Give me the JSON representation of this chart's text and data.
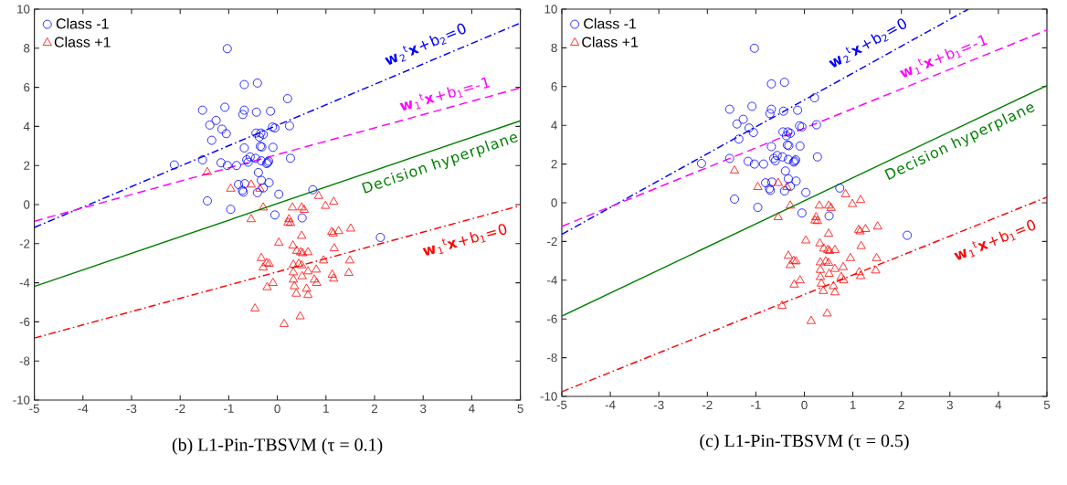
{
  "chart_data": [
    {
      "type": "scatter",
      "title": "(b)  L1-Pin-TBSVM (τ = 0.1)",
      "xlim": [
        -5,
        5
      ],
      "ylim": [
        -10,
        10
      ],
      "xticks": [
        -5,
        -4,
        -3,
        -2,
        -1,
        0,
        1,
        2,
        3,
        4,
        5
      ],
      "yticks": [
        -10,
        -8,
        -6,
        -4,
        -2,
        0,
        2,
        4,
        6,
        8,
        10
      ],
      "legend": "top left",
      "series": [
        {
          "name": "Class -1",
          "marker": "circle",
          "color": "#0000ff",
          "x": [
            -1.03,
            -0.68,
            -0.41,
            0.21,
            -1.54,
            -1.08,
            -0.68,
            -0.43,
            -0.14,
            -0.71,
            -1.26,
            -1.39,
            -1.14,
            -1.05,
            -1.35,
            -0.44,
            -0.34,
            -0.37,
            -0.29,
            -0.1,
            -0.05,
            0.25,
            -0.68,
            -0.35,
            -0.32,
            -0.09,
            0.27,
            -1.54,
            -2.12,
            -1.16,
            -1.03,
            -0.84,
            -0.63,
            -0.56,
            -0.6,
            -0.45,
            -0.33,
            -0.22,
            -0.18,
            -0.2,
            -0.39,
            -0.33,
            -0.17,
            -0.8,
            -0.67,
            -0.7,
            -0.72,
            -0.41,
            -0.29,
            0.03,
            0.73,
            -1.44,
            -0.96,
            -0.05,
            0.51,
            2.12
          ],
          "values": [
            7.98,
            6.14,
            6.22,
            5.42,
            4.83,
            4.98,
            4.83,
            4.73,
            4.78,
            4.61,
            4.31,
            4.07,
            3.86,
            3.63,
            3.29,
            3.66,
            3.66,
            3.46,
            3.59,
            3.97,
            3.92,
            4.03,
            2.9,
            2.98,
            2.95,
            2.93,
            2.37,
            2.29,
            2.03,
            2.14,
            2.0,
            2.0,
            2.29,
            2.44,
            2.17,
            2.37,
            2.24,
            2.1,
            2.22,
            2.15,
            1.64,
            1.24,
            1.12,
            1.03,
            1.07,
            0.64,
            0.73,
            0.61,
            0.85,
            0.53,
            0.76,
            0.19,
            -0.24,
            -0.53,
            -0.68,
            -1.68
          ]
        },
        {
          "name": "Class +1",
          "type": "scatter",
          "marker": "triangle",
          "color": "#ff0000",
          "x": [
            -1.44,
            -0.96,
            -0.54,
            -0.36,
            0.85,
            1.16,
            0.99,
            -0.29,
            0.31,
            0.5,
            0.55,
            -0.54,
            0.24,
            0.22,
            0.27,
            1.12,
            1.15,
            1.26,
            1.51,
            0.5,
            0.03,
            0.32,
            0.4,
            0.48,
            0.52,
            0.63,
            1.17,
            -0.33,
            -0.29,
            -0.17,
            -0.22,
            0.95,
            1.49,
            0.33,
            0.44,
            0.5,
            0.63,
            0.33,
            0.51,
            0.8,
            0.76,
            1.13,
            1.16,
            1.47,
            0.33,
            0.81,
            -0.09,
            -0.21,
            0.35,
            0.6,
            0.39,
            0.63,
            -0.46,
            0.47,
            0.14
          ],
          "values": [
            1.66,
            0.81,
            1.02,
            0.81,
            0.44,
            0.14,
            -0.07,
            -0.15,
            -0.15,
            -0.15,
            -0.27,
            -0.75,
            -0.75,
            -0.92,
            -0.95,
            -1.4,
            -1.48,
            -1.36,
            -1.23,
            -1.6,
            -1.95,
            -2.1,
            -2.37,
            -2.44,
            -2.49,
            -2.44,
            -2.24,
            -2.74,
            -3.22,
            -3.03,
            -3.0,
            -2.86,
            -2.86,
            -3.08,
            -3.03,
            -3.11,
            -3.42,
            -3.47,
            -3.67,
            -3.33,
            -3.84,
            -3.59,
            -3.79,
            -3.5,
            -3.84,
            -4.01,
            -4.01,
            -4.23,
            -4.18,
            -4.31,
            -4.56,
            -4.63,
            -5.32,
            -5.72,
            -6.11
          ]
        },
        {
          "type": "line",
          "color": "#0000ff",
          "line_style": "dashdot",
          "x": [
            -5,
            5
          ],
          "values": [
            -1.17,
            9.29
          ]
        },
        {
          "type": "line",
          "color": "#ff00ff",
          "line_style": "dashed",
          "x": [
            -5,
            5
          ],
          "values": [
            -0.85,
            5.97
          ]
        },
        {
          "type": "line",
          "color": "#008000",
          "line_style": "solid",
          "x": [
            -5,
            5
          ],
          "values": [
            -4.19,
            4.29
          ]
        },
        {
          "type": "line",
          "color": "#ff0000",
          "line_style": "dashdot",
          "x": [
            -5,
            5
          ],
          "values": [
            -6.83,
            -0.05
          ]
        }
      ],
      "annotations": [
        "**w**$_{2}$$^{t}$**x**+b$_{2}$=0",
        "**w**$_{1}$$^{t}$**x**+b$_{1}$=-1",
        "Decision hyperplane",
        "**w**$_{1}$$^{t}$**x**+b$_{1}$=0"
      ]
    },
    {
      "type": "scatter",
      "title": "(c) L1-Pin-TBSVM (τ = 0.5)",
      "xlim": [
        -5,
        5
      ],
      "ylim": [
        -10,
        10
      ],
      "xticks": [
        -5,
        -4,
        -3,
        -2,
        -1,
        0,
        1,
        2,
        3,
        4,
        5
      ],
      "yticks": [
        -10,
        -8,
        -6,
        -4,
        -2,
        0,
        2,
        4,
        6,
        8,
        10
      ],
      "legend": "top left",
      "series": [
        {
          "name": "Class -1",
          "marker": "circle",
          "color": "#0000ff",
          "x": [
            -1.03,
            -0.68,
            -0.41,
            0.21,
            -1.54,
            -1.08,
            -0.68,
            -0.43,
            -0.14,
            -0.71,
            -1.26,
            -1.39,
            -1.14,
            -1.05,
            -1.35,
            -0.44,
            -0.34,
            -0.37,
            -0.29,
            -0.1,
            -0.05,
            0.25,
            -0.68,
            -0.35,
            -0.32,
            -0.09,
            0.27,
            -1.54,
            -2.12,
            -1.16,
            -1.03,
            -0.84,
            -0.63,
            -0.56,
            -0.6,
            -0.45,
            -0.33,
            -0.22,
            -0.18,
            -0.2,
            -0.39,
            -0.33,
            -0.17,
            -0.8,
            -0.67,
            -0.7,
            -0.72,
            -0.41,
            -0.29,
            0.03,
            0.73,
            -1.44,
            -0.96,
            -0.05,
            0.51,
            2.12
          ],
          "values": [
            7.98,
            6.14,
            6.22,
            5.42,
            4.83,
            4.98,
            4.83,
            4.73,
            4.78,
            4.61,
            4.31,
            4.07,
            3.86,
            3.63,
            3.29,
            3.66,
            3.66,
            3.46,
            3.59,
            3.97,
            3.92,
            4.03,
            2.9,
            2.98,
            2.95,
            2.93,
            2.37,
            2.29,
            2.03,
            2.14,
            2.0,
            2.0,
            2.29,
            2.44,
            2.17,
            2.37,
            2.24,
            2.1,
            2.22,
            2.15,
            1.64,
            1.24,
            1.12,
            1.03,
            1.07,
            0.64,
            0.73,
            0.61,
            0.85,
            0.53,
            0.76,
            0.19,
            -0.24,
            -0.53,
            -0.68,
            -1.68
          ]
        },
        {
          "name": "Class +1",
          "type": "scatter",
          "marker": "triangle",
          "color": "#ff0000",
          "x": [
            -1.44,
            -0.96,
            -0.54,
            -0.36,
            0.85,
            1.16,
            0.99,
            -0.29,
            0.31,
            0.5,
            0.55,
            -0.54,
            0.24,
            0.22,
            0.27,
            1.12,
            1.15,
            1.26,
            1.51,
            0.5,
            0.03,
            0.32,
            0.4,
            0.48,
            0.52,
            0.63,
            1.17,
            -0.33,
            -0.29,
            -0.17,
            -0.22,
            0.95,
            1.49,
            0.33,
            0.44,
            0.5,
            0.63,
            0.33,
            0.51,
            0.8,
            0.76,
            1.13,
            1.16,
            1.47,
            0.33,
            0.81,
            -0.09,
            -0.21,
            0.35,
            0.6,
            0.39,
            0.63,
            -0.46,
            0.47,
            0.14
          ],
          "values": [
            1.66,
            0.81,
            1.02,
            0.81,
            0.44,
            0.14,
            -0.07,
            -0.15,
            -0.15,
            -0.15,
            -0.27,
            -0.75,
            -0.75,
            -0.92,
            -0.95,
            -1.4,
            -1.48,
            -1.36,
            -1.23,
            -1.6,
            -1.95,
            -2.1,
            -2.37,
            -2.44,
            -2.49,
            -2.44,
            -2.24,
            -2.74,
            -3.22,
            -3.03,
            -3.0,
            -2.86,
            -2.86,
            -3.08,
            -3.03,
            -3.11,
            -3.42,
            -3.47,
            -3.67,
            -3.33,
            -3.84,
            -3.59,
            -3.79,
            -3.5,
            -3.84,
            -4.01,
            -4.01,
            -4.23,
            -4.18,
            -4.31,
            -4.56,
            -4.63,
            -5.32,
            -5.72,
            -6.11
          ]
        },
        {
          "type": "line",
          "color": "#0000ff",
          "line_style": "dashdot",
          "x": [
            -5,
            3.38
          ],
          "values": [
            -1.63,
            10
          ]
        },
        {
          "type": "line",
          "color": "#ff00ff",
          "line_style": "dashed",
          "x": [
            -5,
            5
          ],
          "values": [
            -1.22,
            8.92
          ]
        },
        {
          "type": "line",
          "color": "#008000",
          "line_style": "solid",
          "x": [
            -5,
            5
          ],
          "values": [
            -5.85,
            6.05
          ]
        },
        {
          "type": "line",
          "color": "#ff0000",
          "line_style": "dashdot",
          "x": [
            -5,
            5
          ],
          "values": [
            -9.76,
            0.29
          ]
        }
      ],
      "annotations": [
        "**w**$_{2}$$^{t}$**x**+b$_{2}$=0",
        "**w**$_{1}$$^{t}$**x**+b$_{1}$=-1",
        "Decision hyperplane",
        "**w**$_{1}$$^{t}$**x**+b$_{1}$=0"
      ]
    }
  ]
}
